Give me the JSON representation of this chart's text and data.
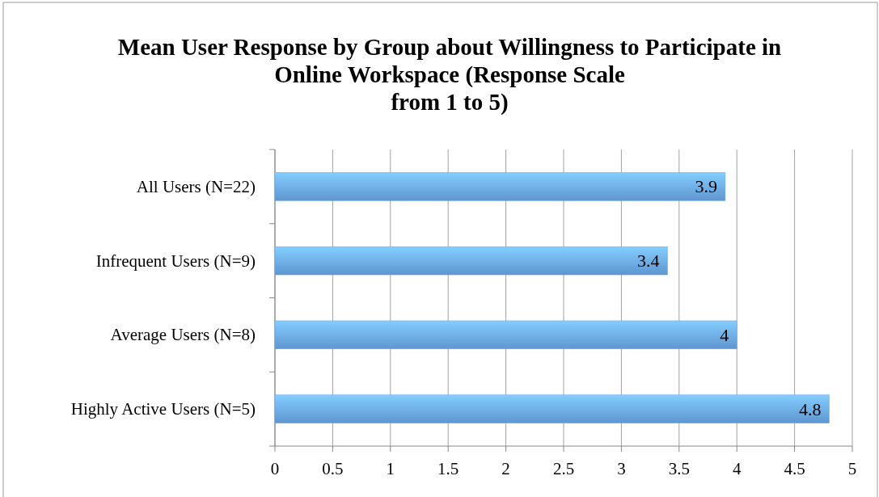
{
  "chart_data": {
    "type": "bar",
    "orientation": "horizontal",
    "title": "Mean User Response by Group about Willingness to Participate in Online Workspace (Response Scale from 1 to 5)",
    "categories": [
      "All Users (N=22)",
      "Infrequent Users (N=9)",
      "Average Users (N=8)",
      "Highly Active Users (N=5)"
    ],
    "values": [
      3.9,
      3.4,
      4,
      4.8
    ],
    "color": "#6aa6e8",
    "xlim": [
      0,
      5
    ],
    "xticks": [
      0,
      0.5,
      1,
      1.5,
      2,
      2.5,
      3,
      3.5,
      4,
      4.5,
      5
    ],
    "grid": "x",
    "data_labels": true
  }
}
